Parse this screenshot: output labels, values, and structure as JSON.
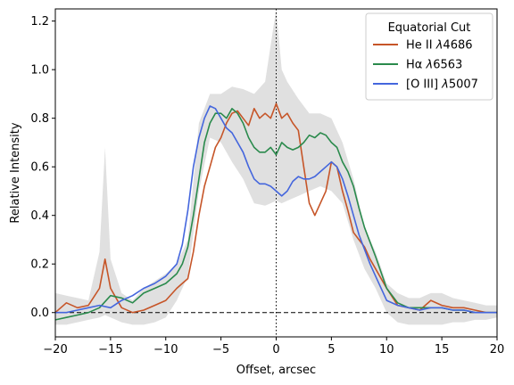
{
  "chart_data": {
    "type": "line",
    "xlabel": "Offset, arcsec",
    "ylabel": "Relative Intensity",
    "xlim": [
      -20,
      20
    ],
    "ylim": [
      -0.1,
      1.25
    ],
    "xticks": [
      -20,
      -15,
      -10,
      -5,
      0,
      5,
      10,
      15,
      20
    ],
    "xtick_labels": [
      "−20",
      "−15",
      "−10",
      "−5",
      "0",
      "5",
      "10",
      "15",
      "20"
    ],
    "yticks": [
      0.0,
      0.2,
      0.4,
      0.6,
      0.8,
      1.0,
      1.2
    ],
    "ytick_labels": [
      "0.0",
      "0.2",
      "0.4",
      "0.6",
      "0.8",
      "1.0",
      "1.2"
    ],
    "grid": false,
    "legend": {
      "title": "Equatorial Cut",
      "location": "top-right"
    },
    "reference_lines": [
      {
        "orientation": "horizontal",
        "value": 0.0,
        "style": "dashed",
        "color": "#000000"
      },
      {
        "orientation": "vertical",
        "value": 0.0,
        "style": "dotted",
        "color": "#000000"
      }
    ],
    "series": [
      {
        "name": "He II λ4686",
        "name_parts": [
          "He II ",
          "λ",
          "4686"
        ],
        "color": "#c65528",
        "x": [
          -20,
          -19,
          -18,
          -17,
          -16,
          -15.5,
          -15,
          -14,
          -13,
          -12,
          -11,
          -10,
          -9,
          -8.5,
          -8,
          -7.5,
          -7,
          -6.5,
          -6,
          -5.5,
          -5,
          -4.5,
          -4,
          -3.5,
          -3,
          -2.5,
          -2,
          -1.5,
          -1,
          -0.5,
          0,
          0.5,
          1,
          1.5,
          2,
          2.5,
          3,
          3.5,
          4,
          4.5,
          5,
          5.5,
          6,
          6.5,
          7,
          7.5,
          8,
          8.5,
          9,
          10,
          11,
          12,
          13,
          14,
          15,
          16,
          17,
          18,
          19,
          20
        ],
        "y": [
          0.0,
          0.04,
          0.02,
          0.03,
          0.1,
          0.22,
          0.1,
          0.02,
          0.0,
          0.01,
          0.03,
          0.05,
          0.1,
          0.12,
          0.14,
          0.25,
          0.4,
          0.52,
          0.6,
          0.68,
          0.72,
          0.78,
          0.82,
          0.83,
          0.8,
          0.77,
          0.84,
          0.8,
          0.82,
          0.8,
          0.86,
          0.8,
          0.82,
          0.78,
          0.75,
          0.6,
          0.45,
          0.4,
          0.45,
          0.5,
          0.62,
          0.6,
          0.5,
          0.42,
          0.33,
          0.3,
          0.27,
          0.22,
          0.18,
          0.1,
          0.03,
          0.02,
          0.01,
          0.05,
          0.03,
          0.02,
          0.02,
          0.01,
          0.0,
          0.0
        ]
      },
      {
        "name": "Hα λ6563",
        "name_parts": [
          "Hα ",
          "λ",
          "6563"
        ],
        "color": "#2a8a4c",
        "x": [
          -20,
          -19,
          -18,
          -17,
          -16,
          -15,
          -14,
          -13,
          -12,
          -11,
          -10,
          -9,
          -8.5,
          -8,
          -7.5,
          -7,
          -6.5,
          -6,
          -5.5,
          -5,
          -4.5,
          -4,
          -3.5,
          -3,
          -2.5,
          -2,
          -1.5,
          -1,
          -0.5,
          0,
          0.5,
          1,
          1.5,
          2,
          2.5,
          3,
          3.5,
          4,
          4.5,
          5,
          5.5,
          6,
          6.5,
          7,
          7.5,
          8,
          8.5,
          9,
          10,
          11,
          12,
          13,
          14,
          15,
          16,
          17,
          18,
          19,
          20
        ],
        "y": [
          -0.03,
          -0.02,
          -0.01,
          0.0,
          0.02,
          0.07,
          0.06,
          0.04,
          0.08,
          0.1,
          0.12,
          0.16,
          0.2,
          0.27,
          0.4,
          0.55,
          0.7,
          0.78,
          0.82,
          0.82,
          0.8,
          0.84,
          0.82,
          0.78,
          0.72,
          0.68,
          0.66,
          0.66,
          0.68,
          0.65,
          0.7,
          0.68,
          0.67,
          0.68,
          0.7,
          0.73,
          0.72,
          0.74,
          0.73,
          0.7,
          0.68,
          0.62,
          0.58,
          0.52,
          0.43,
          0.35,
          0.29,
          0.23,
          0.1,
          0.04,
          0.02,
          0.02,
          0.02,
          0.02,
          0.01,
          0.01,
          0.0,
          0.0,
          0.0
        ]
      },
      {
        "name": "[O III] λ5007",
        "name_parts": [
          "[O III] ",
          "λ",
          "5007"
        ],
        "color": "#4466dd",
        "x": [
          -20,
          -19,
          -18,
          -17,
          -16,
          -15,
          -14,
          -13,
          -12,
          -11,
          -10,
          -9,
          -8.5,
          -8,
          -7.5,
          -7,
          -6.5,
          -6,
          -5.5,
          -5,
          -4.5,
          -4,
          -3.5,
          -3,
          -2.5,
          -2,
          -1.5,
          -1,
          -0.5,
          0,
          0.5,
          1,
          1.5,
          2,
          2.5,
          3,
          3.5,
          4,
          4.5,
          5,
          5.5,
          6,
          6.5,
          7,
          7.5,
          8,
          8.5,
          9,
          10,
          11,
          12,
          13,
          14,
          15,
          16,
          17,
          18,
          19,
          20
        ],
        "y": [
          0.0,
          0.0,
          0.01,
          0.02,
          0.03,
          0.02,
          0.05,
          0.07,
          0.1,
          0.12,
          0.15,
          0.2,
          0.28,
          0.42,
          0.6,
          0.72,
          0.8,
          0.85,
          0.84,
          0.8,
          0.76,
          0.74,
          0.7,
          0.66,
          0.6,
          0.55,
          0.53,
          0.53,
          0.52,
          0.5,
          0.48,
          0.5,
          0.54,
          0.56,
          0.55,
          0.55,
          0.56,
          0.58,
          0.6,
          0.62,
          0.6,
          0.55,
          0.48,
          0.4,
          0.32,
          0.26,
          0.2,
          0.15,
          0.05,
          0.03,
          0.02,
          0.01,
          0.02,
          0.02,
          0.01,
          0.01,
          0.0,
          0.0,
          0.0
        ]
      }
    ],
    "uncertainty_band": {
      "color": "#bbbbbb",
      "opacity": 0.45,
      "x": [
        -20,
        -19,
        -18,
        -17,
        -16,
        -15.5,
        -15,
        -14,
        -13,
        -12,
        -11,
        -10,
        -9,
        -8,
        -7,
        -6,
        -5,
        -4,
        -3,
        -2,
        -1,
        -0.5,
        0,
        0.5,
        1,
        2,
        3,
        4,
        5,
        6,
        7,
        8,
        9,
        10,
        11,
        12,
        13,
        14,
        15,
        16,
        17,
        18,
        19,
        20
      ],
      "upper": [
        0.08,
        0.07,
        0.06,
        0.05,
        0.25,
        0.68,
        0.22,
        0.08,
        0.05,
        0.1,
        0.13,
        0.16,
        0.2,
        0.3,
        0.78,
        0.9,
        0.9,
        0.93,
        0.92,
        0.9,
        0.95,
        1.1,
        1.25,
        1.0,
        0.95,
        0.88,
        0.82,
        0.82,
        0.8,
        0.7,
        0.55,
        0.35,
        0.25,
        0.12,
        0.08,
        0.06,
        0.06,
        0.08,
        0.08,
        0.06,
        0.05,
        0.04,
        0.03,
        0.03
      ],
      "lower": [
        -0.05,
        -0.05,
        -0.04,
        -0.03,
        -0.02,
        -0.01,
        -0.02,
        -0.04,
        -0.05,
        -0.05,
        -0.04,
        -0.02,
        0.05,
        0.15,
        0.5,
        0.72,
        0.7,
        0.62,
        0.55,
        0.45,
        0.44,
        0.45,
        0.46,
        0.45,
        0.46,
        0.48,
        0.5,
        0.52,
        0.5,
        0.45,
        0.3,
        0.18,
        0.1,
        0.0,
        -0.04,
        -0.05,
        -0.05,
        -0.05,
        -0.05,
        -0.04,
        -0.04,
        -0.03,
        -0.03,
        -0.02
      ]
    }
  }
}
